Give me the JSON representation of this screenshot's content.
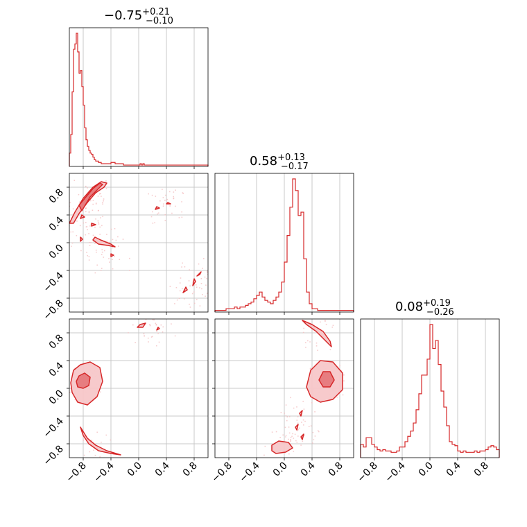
{
  "chart_data": {
    "type": "corner",
    "color": "#d62728",
    "parameter_range": [
      -1.0,
      1.0
    ],
    "tick_values": [
      -0.8,
      -0.4,
      0.0,
      0.4,
      0.8
    ],
    "tick_labels": [
      "−0.8",
      "−0.4",
      "0.0",
      "0.4",
      "0.8"
    ],
    "grid": true,
    "titles": [
      {
        "median": "−0.75",
        "plus": "+0.21",
        "minus": "−0.10"
      },
      {
        "median": "0.58",
        "plus": "+0.13",
        "minus": "−0.17"
      },
      {
        "median": "0.08",
        "plus": "+0.19",
        "minus": "−0.26"
      }
    ],
    "histograms": [
      {
        "parameter": 1,
        "bin_edges_start": -1.0,
        "bin_width": 0.02,
        "relative_counts": [
          0.1,
          0.24,
          0.56,
          0.88,
          0.92,
          1.0,
          0.86,
          0.7,
          0.72,
          0.6,
          0.46,
          0.29,
          0.2,
          0.15,
          0.12,
          0.1,
          0.09,
          0.07,
          0.05,
          0.04,
          0.04,
          0.03,
          0.03,
          0.02,
          0.02,
          0.02,
          0.02,
          0.02,
          0.02,
          0.02,
          0.03,
          0.03,
          0.03,
          0.02,
          0.02,
          0.02,
          0.02,
          0.02,
          0.02,
          0.01,
          0.01,
          0.01,
          0.01,
          0.01,
          0.01,
          0.01,
          0.01,
          0.01,
          0.01,
          0.01,
          0.01,
          0.02,
          0.01,
          0.02,
          0.01,
          0.01,
          0.01,
          0.01,
          0.01,
          0.01,
          0.01,
          0.01,
          0.01,
          0.01,
          0.01,
          0.01,
          0.01,
          0.01,
          0.01,
          0.01,
          0.01,
          0.01,
          0.01,
          0.01,
          0.01,
          0.01,
          0.01,
          0.01,
          0.01,
          0.01,
          0.01,
          0.01,
          0.01,
          0.01,
          0.01,
          0.01,
          0.01,
          0.01,
          0.01,
          0.01,
          0.01,
          0.01,
          0.01,
          0.01,
          0.01,
          0.01,
          0.01,
          0.01,
          0.01,
          0.01
        ]
      },
      {
        "parameter": 2,
        "bin_edges_start": -1.0,
        "bin_width": 0.04,
        "relative_counts": [
          0.01,
          0.01,
          0.01,
          0.01,
          0.02,
          0.02,
          0.02,
          0.03,
          0.02,
          0.03,
          0.03,
          0.04,
          0.05,
          0.06,
          0.08,
          0.1,
          0.12,
          0.09,
          0.07,
          0.06,
          0.05,
          0.07,
          0.09,
          0.12,
          0.18,
          0.3,
          0.46,
          0.63,
          0.8,
          0.73,
          0.58,
          0.6,
          0.32,
          0.12,
          0.05,
          0.02,
          0.02,
          0.01,
          0.01,
          0.01,
          0.01,
          0.01,
          0.01,
          0.01,
          0.01,
          0.01,
          0.01,
          0.01,
          0.01,
          0.01
        ]
      },
      {
        "parameter": 3,
        "bin_edges_start": -1.0,
        "bin_width": 0.04,
        "relative_counts": [
          0.1,
          0.08,
          0.15,
          0.15,
          0.1,
          0.08,
          0.06,
          0.05,
          0.06,
          0.05,
          0.05,
          0.04,
          0.04,
          0.05,
          0.08,
          0.08,
          0.12,
          0.16,
          0.2,
          0.26,
          0.36,
          0.48,
          0.62,
          0.62,
          0.74,
          1.0,
          0.82,
          0.88,
          0.7,
          0.5,
          0.38,
          0.24,
          0.12,
          0.1,
          0.09,
          0.05,
          0.04,
          0.05,
          0.04,
          0.04,
          0.04,
          0.05,
          0.04,
          0.05,
          0.05,
          0.06,
          0.08,
          0.09,
          0.08,
          0.06
        ]
      }
    ],
    "contour_panels": [
      {
        "x_parameter": 1,
        "y_parameter": 2,
        "regions": [
          {
            "level": 0.39,
            "points": [
              [
                -0.82,
                0.46
              ],
              [
                -0.7,
                0.66
              ],
              [
                -0.6,
                0.76
              ],
              [
                -0.52,
                0.84
              ],
              [
                -0.56,
                0.86
              ],
              [
                -0.66,
                0.78
              ],
              [
                -0.76,
                0.66
              ],
              [
                -0.86,
                0.54
              ]
            ]
          },
          {
            "level": 0.86,
            "points": [
              [
                -1.0,
                0.28
              ],
              [
                -0.92,
                0.44
              ],
              [
                -0.8,
                0.64
              ],
              [
                -0.66,
                0.8
              ],
              [
                -0.54,
                0.88
              ],
              [
                -0.46,
                0.86
              ],
              [
                -0.5,
                0.8
              ],
              [
                -0.62,
                0.72
              ],
              [
                -0.74,
                0.58
              ],
              [
                -0.86,
                0.42
              ],
              [
                -0.94,
                0.28
              ]
            ]
          },
          {
            "level": 0.86,
            "points": [
              [
                -0.84,
                0.35
              ],
              [
                -0.78,
                0.37
              ],
              [
                -0.82,
                0.4
              ]
            ]
          },
          {
            "level": 0.86,
            "points": [
              [
                -0.68,
                0.24
              ],
              [
                -0.62,
                0.26
              ],
              [
                -0.68,
                0.28
              ]
            ]
          },
          {
            "level": 0.86,
            "points": [
              [
                -0.84,
                0.02
              ],
              [
                -0.81,
                0.05
              ],
              [
                -0.84,
                0.08
              ]
            ]
          },
          {
            "level": 0.86,
            "points": [
              [
                -0.63,
                0.08
              ],
              [
                -0.55,
                0.04
              ],
              [
                -0.4,
                -0.02
              ],
              [
                -0.34,
                -0.06
              ],
              [
                -0.44,
                -0.04
              ],
              [
                -0.58,
                -0.02
              ],
              [
                -0.66,
                0.04
              ]
            ]
          },
          {
            "level": 0.86,
            "points": [
              [
                -0.4,
                -0.16
              ],
              [
                -0.36,
                -0.18
              ],
              [
                -0.4,
                -0.2
              ]
            ]
          },
          {
            "level": 0.86,
            "points": [
              [
                0.24,
                0.48
              ],
              [
                0.3,
                0.5
              ],
              [
                0.26,
                0.52
              ]
            ]
          },
          {
            "level": 0.86,
            "points": [
              [
                0.4,
                0.56
              ],
              [
                0.46,
                0.56
              ],
              [
                0.42,
                0.58
              ]
            ]
          },
          {
            "level": 0.86,
            "points": [
              [
                0.64,
                -0.72
              ],
              [
                0.7,
                -0.68
              ],
              [
                0.68,
                -0.64
              ]
            ]
          },
          {
            "level": 0.86,
            "points": [
              [
                0.78,
                -0.62
              ],
              [
                0.82,
                -0.56
              ],
              [
                0.8,
                -0.52
              ]
            ]
          },
          {
            "level": 0.86,
            "points": [
              [
                0.84,
                -0.48
              ],
              [
                0.9,
                -0.42
              ],
              [
                0.88,
                -0.46
              ]
            ]
          }
        ]
      },
      {
        "x_parameter": 1,
        "y_parameter": 3,
        "regions": [
          {
            "level": 0.39,
            "points": [
              [
                -0.9,
                0.1
              ],
              [
                -0.86,
                0.18
              ],
              [
                -0.78,
                0.22
              ],
              [
                -0.7,
                0.16
              ],
              [
                -0.72,
                0.04
              ],
              [
                -0.8,
                0.0
              ],
              [
                -0.88,
                0.02
              ]
            ]
          },
          {
            "level": 0.86,
            "points": [
              [
                -0.98,
                0.08
              ],
              [
                -0.94,
                0.26
              ],
              [
                -0.84,
                0.34
              ],
              [
                -0.7,
                0.38
              ],
              [
                -0.56,
                0.3
              ],
              [
                -0.52,
                0.1
              ],
              [
                -0.6,
                -0.12
              ],
              [
                -0.74,
                -0.24
              ],
              [
                -0.88,
                -0.2
              ],
              [
                -0.96,
                -0.06
              ]
            ]
          },
          {
            "level": 0.86,
            "points": [
              [
                -0.84,
                -0.56
              ],
              [
                -0.74,
                -0.72
              ],
              [
                -0.62,
                -0.82
              ],
              [
                -0.46,
                -0.9
              ],
              [
                -0.26,
                -0.96
              ],
              [
                -0.4,
                -0.94
              ],
              [
                -0.58,
                -0.9
              ],
              [
                -0.72,
                -0.8
              ],
              [
                -0.8,
                -0.68
              ]
            ]
          },
          {
            "level": 0.86,
            "points": [
              [
                -0.02,
                0.88
              ],
              [
                0.02,
                0.92
              ],
              [
                0.1,
                0.94
              ],
              [
                0.06,
                0.88
              ]
            ]
          },
          {
            "level": 0.86,
            "points": [
              [
                0.26,
                0.84
              ],
              [
                0.3,
                0.86
              ],
              [
                0.28,
                0.88
              ]
            ]
          }
        ]
      },
      {
        "x_parameter": 2,
        "y_parameter": 3,
        "regions": [
          {
            "level": 0.39,
            "points": [
              [
                0.5,
                0.12
              ],
              [
                0.56,
                0.24
              ],
              [
                0.66,
                0.24
              ],
              [
                0.72,
                0.12
              ],
              [
                0.66,
                0.02
              ],
              [
                0.56,
                0.02
              ]
            ]
          },
          {
            "level": 0.86,
            "points": [
              [
                0.32,
                0.02
              ],
              [
                0.38,
                0.26
              ],
              [
                0.52,
                0.4
              ],
              [
                0.7,
                0.38
              ],
              [
                0.84,
                0.22
              ],
              [
                0.84,
                -0.02
              ],
              [
                0.7,
                -0.16
              ],
              [
                0.52,
                -0.2
              ],
              [
                0.38,
                -0.12
              ]
            ]
          },
          {
            "level": 0.86,
            "points": [
              [
                0.26,
                0.98
              ],
              [
                0.4,
                0.92
              ],
              [
                0.56,
                0.82
              ],
              [
                0.66,
                0.68
              ],
              [
                0.68,
                0.6
              ],
              [
                0.58,
                0.7
              ],
              [
                0.46,
                0.82
              ],
              [
                0.32,
                0.92
              ]
            ]
          },
          {
            "level": 0.86,
            "points": [
              [
                -0.18,
                -0.82
              ],
              [
                -0.08,
                -0.76
              ],
              [
                0.06,
                -0.78
              ],
              [
                0.12,
                -0.86
              ],
              [
                0.02,
                -0.92
              ],
              [
                -0.12,
                -0.94
              ],
              [
                -0.18,
                -0.9
              ]
            ]
          },
          {
            "level": 0.86,
            "points": [
              [
                0.22,
                -0.36
              ],
              [
                0.26,
                -0.32
              ],
              [
                0.24,
                -0.4
              ]
            ]
          },
          {
            "level": 0.86,
            "points": [
              [
                0.16,
                -0.56
              ],
              [
                0.2,
                -0.52
              ],
              [
                0.18,
                -0.6
              ]
            ]
          },
          {
            "level": 0.86,
            "points": [
              [
                0.24,
                -0.7
              ],
              [
                0.28,
                -0.66
              ],
              [
                0.26,
                -0.74
              ]
            ]
          }
        ]
      }
    ]
  }
}
